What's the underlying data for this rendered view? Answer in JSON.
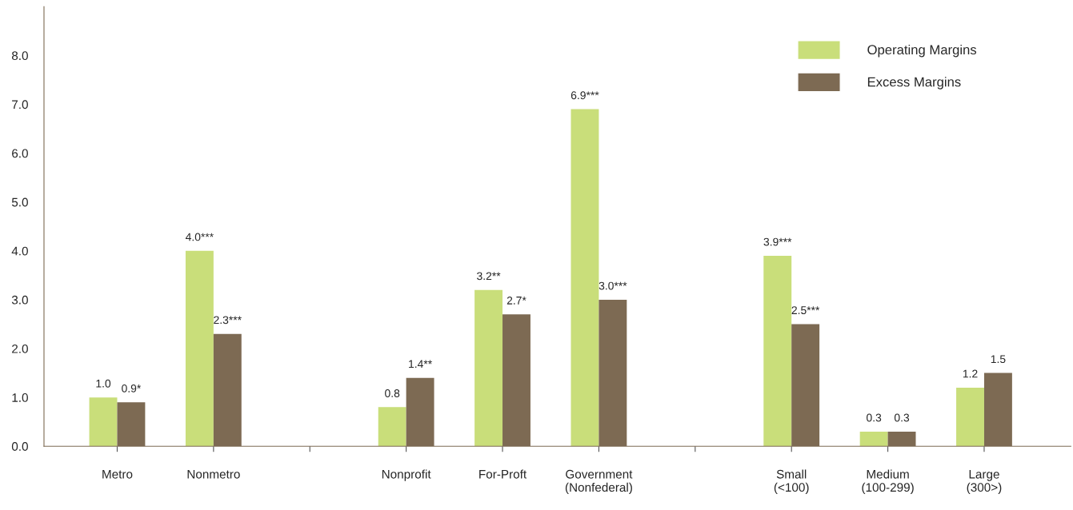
{
  "chart_data": {
    "type": "bar",
    "categories": [
      "Metro",
      "Nonmetro",
      null,
      "Nonprofit",
      "For-Proft",
      "Government\n(Nonfederal)",
      null,
      "Small\n(<100)",
      "Medium\n(100-299)",
      "Large\n(300>)"
    ],
    "series": [
      {
        "name": "Operating Margins",
        "color": "#c9de7a",
        "values": [
          1.0,
          4.0,
          null,
          0.8,
          3.2,
          6.9,
          null,
          3.9,
          0.3,
          1.2
        ],
        "value_labels": [
          "1.0",
          "4.0***",
          null,
          "0.8",
          "3.2**",
          "6.9***",
          null,
          "3.9***",
          "0.3",
          "1.2"
        ]
      },
      {
        "name": "Excess Margins",
        "color": "#7d6a53",
        "values": [
          0.9,
          2.3,
          null,
          1.4,
          2.7,
          3.0,
          null,
          2.5,
          0.3,
          1.5
        ],
        "value_labels": [
          "0.9*",
          "2.3***",
          null,
          "1.4**",
          "2.7*",
          "3.0***",
          null,
          "2.5***",
          "0.3",
          "1.5"
        ]
      }
    ],
    "ylim": [
      0,
      9
    ],
    "yticks": [
      {
        "value": 0,
        "label": "0.0"
      },
      {
        "value": 1,
        "label": "1.0"
      },
      {
        "value": 2,
        "label": "2.0"
      },
      {
        "value": 3,
        "label": "3.0"
      },
      {
        "value": 4,
        "label": "4.0"
      },
      {
        "value": 5,
        "label": "5.0"
      },
      {
        "value": 6,
        "label": "6.0"
      },
      {
        "value": 7,
        "label": "7.0"
      },
      {
        "value": 8,
        "label": "8.0"
      }
    ],
    "grid": false,
    "legend": "top right"
  }
}
